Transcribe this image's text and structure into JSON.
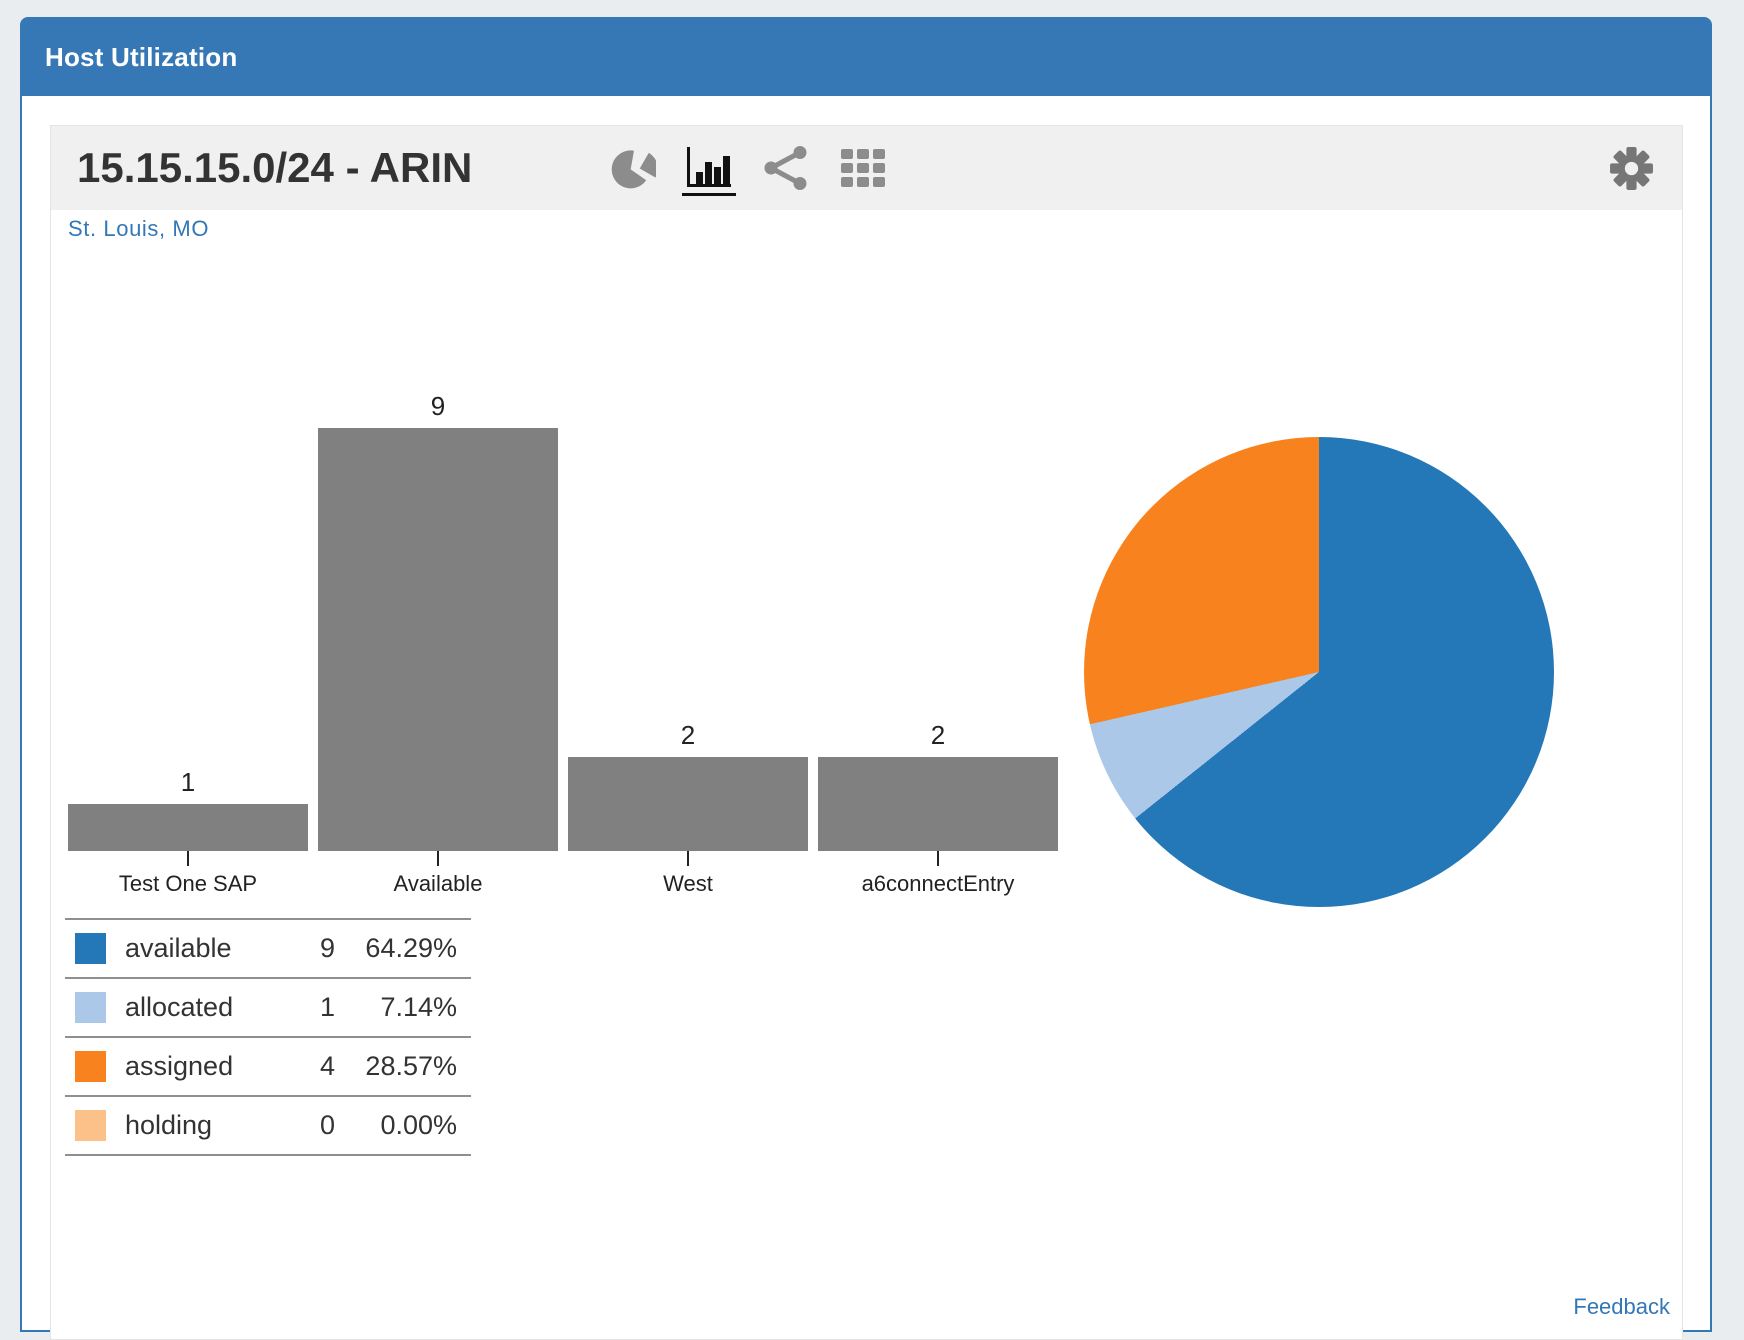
{
  "panel": {
    "title": "Host Utilization"
  },
  "widget": {
    "title": "15.15.15.0/24 - ARIN",
    "location": "St. Louis, MO",
    "feedback": "Feedback",
    "toolbar_icons": [
      "pie-chart-icon",
      "bar-chart-icon",
      "share-icon",
      "grid-icon",
      "gear-icon"
    ],
    "active_view": "bar-chart"
  },
  "chart_data": [
    {
      "type": "bar",
      "categories": [
        "Test One SAP",
        "Available",
        "West",
        "a6connectEntry"
      ],
      "values": [
        1,
        9,
        2,
        2
      ],
      "value_labels": [
        "1",
        "9",
        "2",
        "2"
      ],
      "bar_color": "#808080",
      "ylim": [
        0,
        9
      ],
      "grid": false,
      "title": "",
      "xlabel": "",
      "ylabel": ""
    },
    {
      "type": "pie",
      "start_angle": "12-oclock",
      "direction": "clockwise",
      "slices": [
        {
          "label": "available",
          "value": 9,
          "pct": 64.29,
          "pct_label": "64.29%",
          "color": "#2478b7"
        },
        {
          "label": "allocated",
          "value": 1,
          "pct": 7.14,
          "pct_label": "7.14%",
          "color": "#abc8e8"
        },
        {
          "label": "assigned",
          "value": 4,
          "pct": 28.57,
          "pct_label": "28.57%",
          "color": "#f8821e"
        },
        {
          "label": "holding",
          "value": 0,
          "pct": 0.0,
          "pct_label": "0.00%",
          "color": "#fcc089"
        }
      ]
    }
  ],
  "colors": {
    "header_blue": "#3578b5",
    "link_blue": "#3477b6",
    "widget_header_bg": "#f0f0f0",
    "page_bg": "#e9edf0",
    "bar_gray": "#808080"
  }
}
